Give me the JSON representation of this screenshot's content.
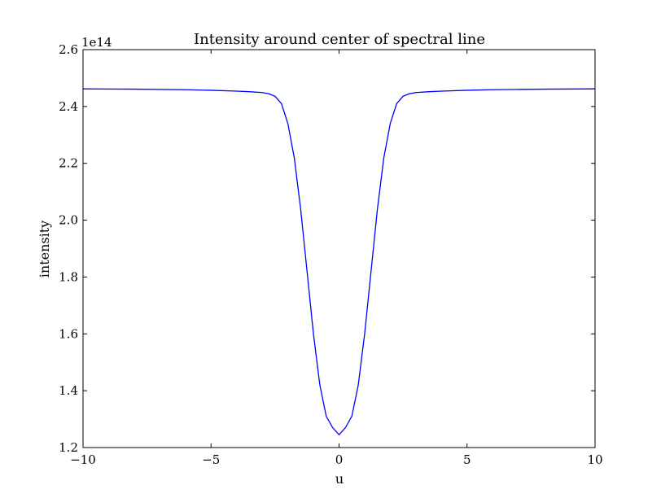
{
  "chart_data": {
    "type": "line",
    "title": "Intensity around center of spectral line",
    "xlabel": "u",
    "ylabel": "intensity",
    "y_offset_label": "1e14",
    "xlim": [
      -10,
      10
    ],
    "ylim": [
      1.2,
      2.6
    ],
    "y_scale_factor": 100000000000000.0,
    "xticks": [
      -10,
      -5,
      0,
      5,
      10
    ],
    "xtick_labels": [
      "−10",
      "−5",
      "0",
      "5",
      "10"
    ],
    "yticks": [
      1.2,
      1.4,
      1.6,
      1.8,
      2.0,
      2.2,
      2.4,
      2.6
    ],
    "ytick_labels": [
      "1.2",
      "1.4",
      "1.6",
      "1.8",
      "2.0",
      "2.2",
      "2.4",
      "2.6"
    ],
    "grid": false,
    "series": [
      {
        "color": "#0000ff",
        "x": [
          -10,
          -8,
          -6,
          -5,
          -4,
          -3.5,
          -3,
          -2.75,
          -2.5,
          -2.25,
          -2,
          -1.75,
          -1.5,
          -1.25,
          -1,
          -0.75,
          -0.5,
          -0.25,
          0,
          0.25,
          0.5,
          0.75,
          1,
          1.25,
          1.5,
          1.75,
          2,
          2.25,
          2.5,
          2.75,
          3,
          3.5,
          4,
          5,
          6,
          8,
          10
        ],
        "y": [
          2.462,
          2.461,
          2.459,
          2.457,
          2.454,
          2.452,
          2.449,
          2.445,
          2.436,
          2.41,
          2.34,
          2.22,
          2.04,
          1.82,
          1.6,
          1.42,
          1.31,
          1.27,
          1.245,
          1.27,
          1.31,
          1.42,
          1.6,
          1.82,
          2.04,
          2.22,
          2.34,
          2.41,
          2.436,
          2.445,
          2.449,
          2.452,
          2.454,
          2.457,
          2.459,
          2.461,
          2.462
        ]
      }
    ]
  }
}
